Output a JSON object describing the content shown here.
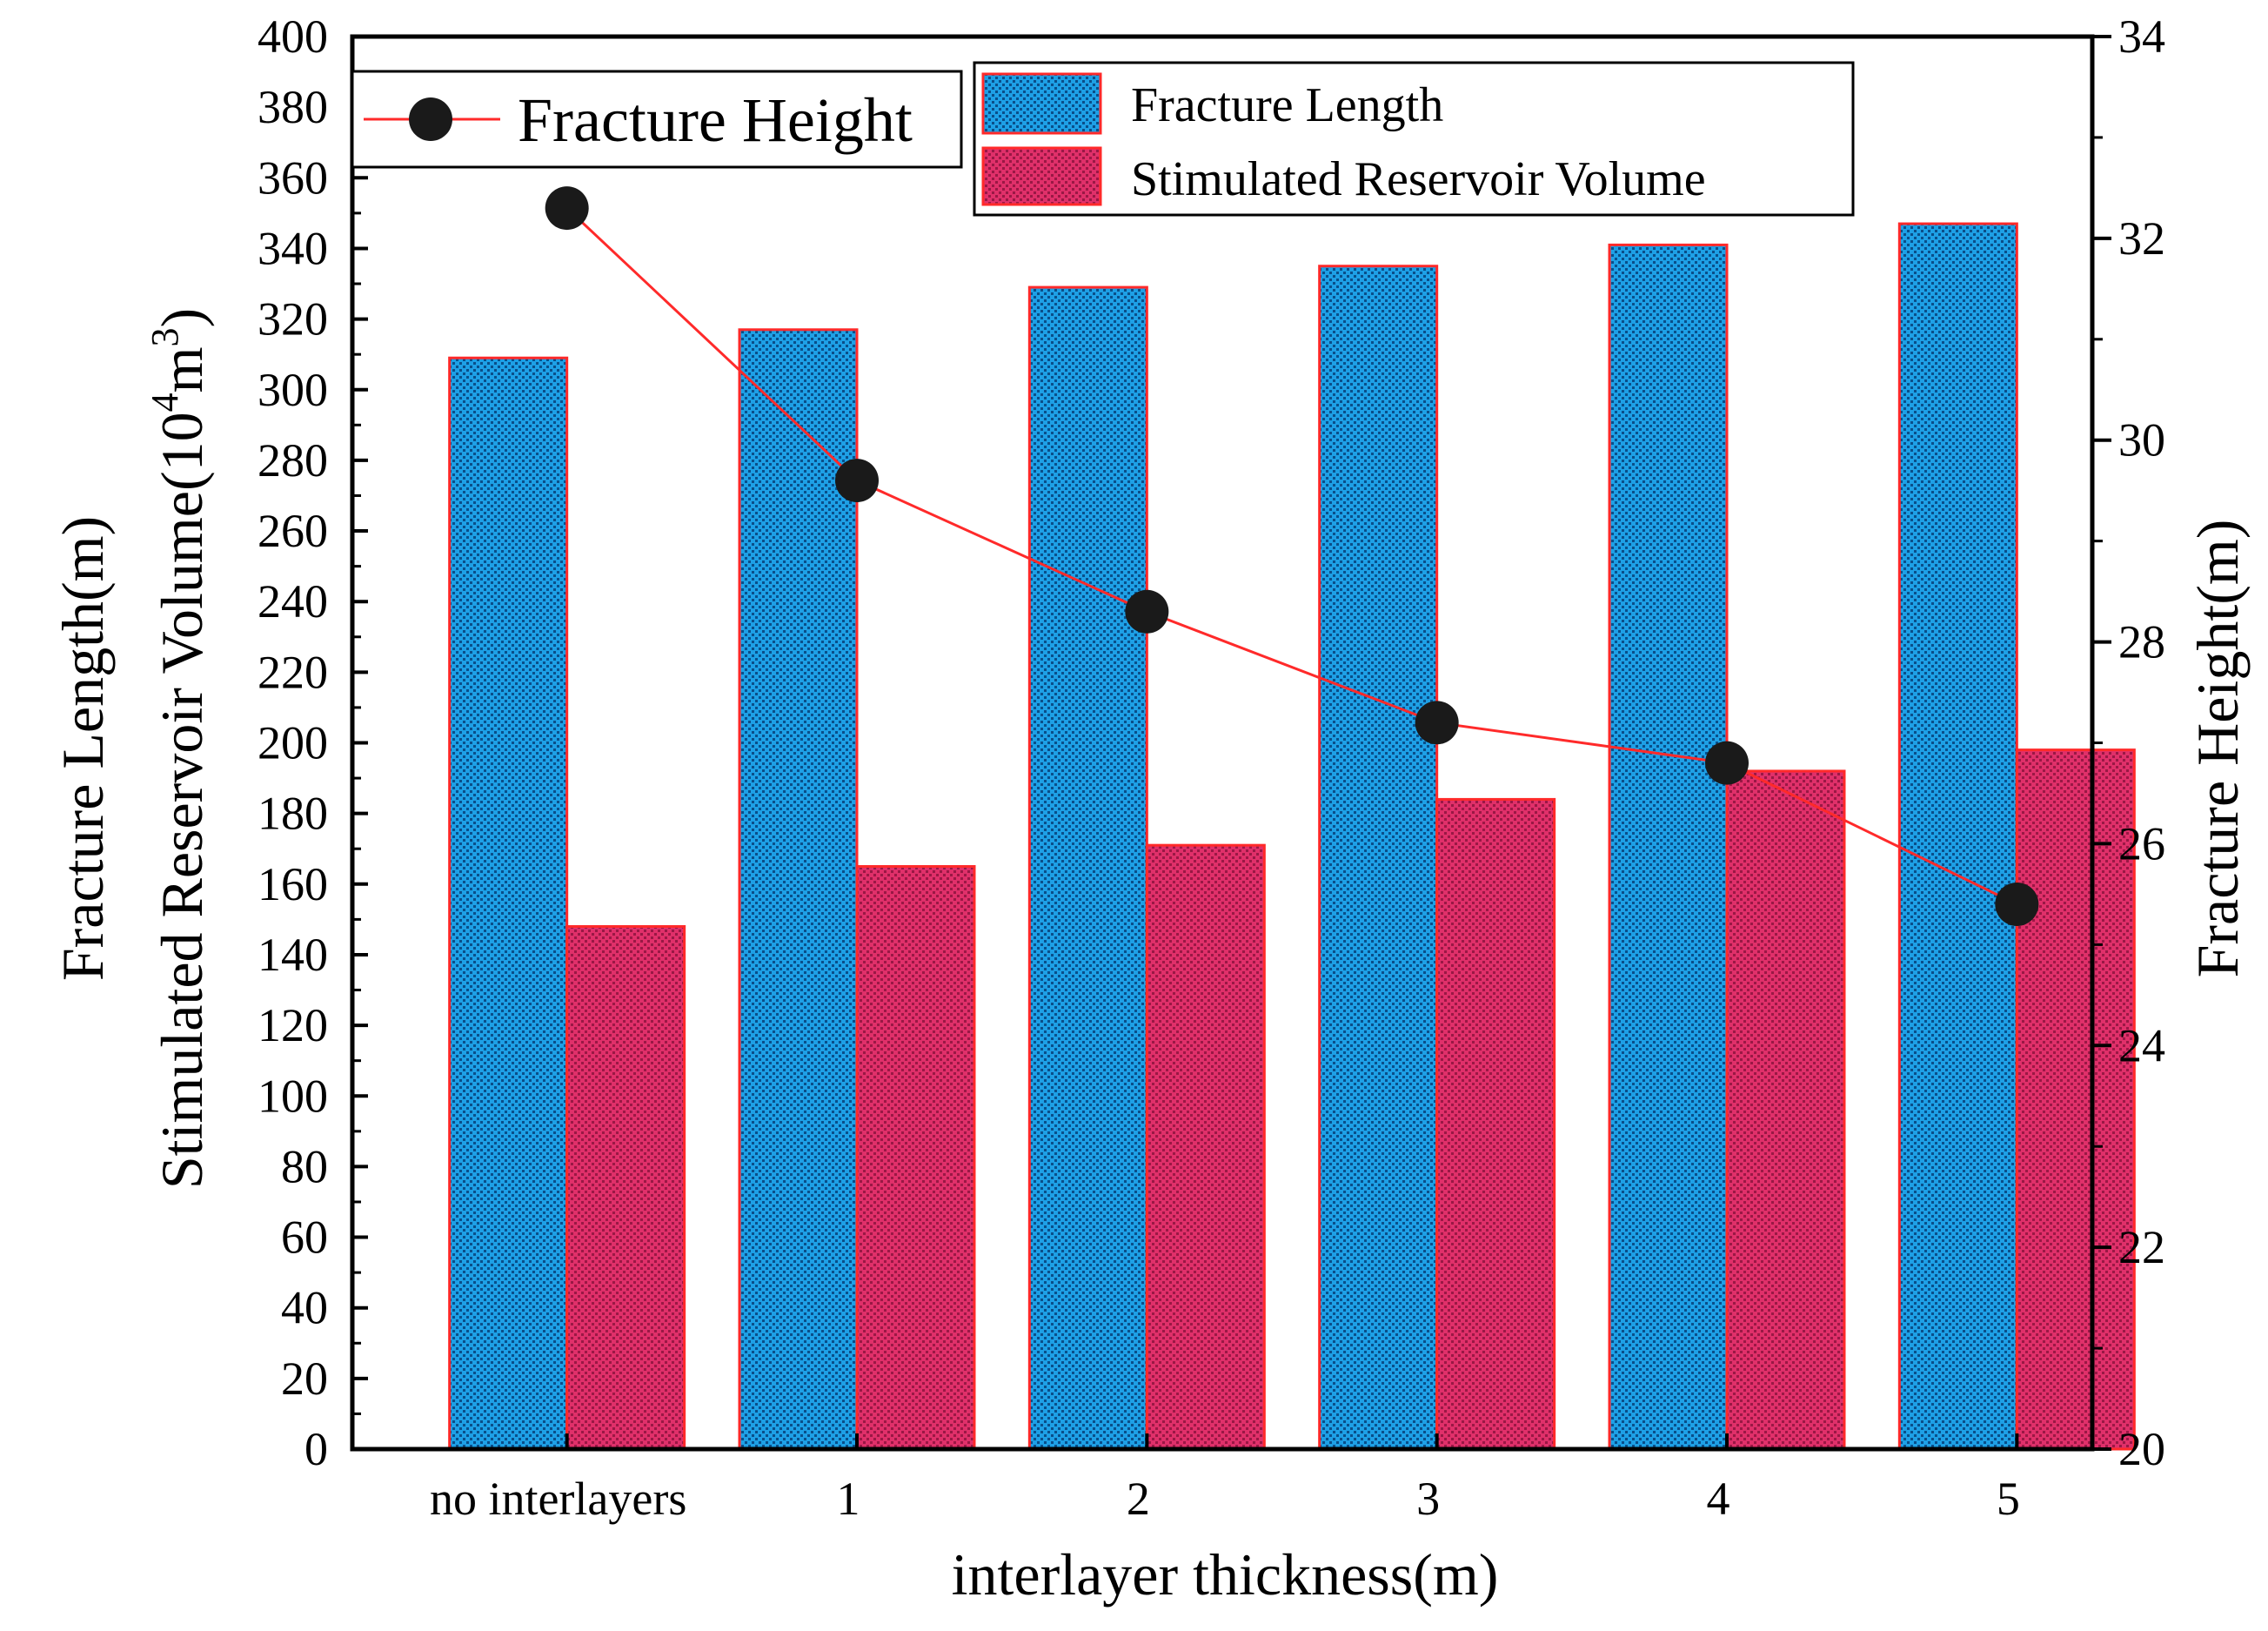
{
  "chart_data": {
    "type": "bar",
    "xlabel": "interlayer thickness(m)",
    "ylabel_left_line1": "Fracture Length(m)",
    "ylabel_left_line2_prefix": "Stimulated Reservoir Volume(10",
    "ylabel_left_line2_sup1": "4",
    "ylabel_left_line2_mid": "m",
    "ylabel_left_line2_sup2": "3",
    "ylabel_left_line2_suffix": ")",
    "ylabel_right": "Fracture Height(m)",
    "categories": [
      "no interlayers",
      "1",
      "2",
      "3",
      "4",
      "5"
    ],
    "ylim_left": [
      0,
      400
    ],
    "ylim_right": [
      20,
      34
    ],
    "yticks_left": [
      "0",
      "20",
      "40",
      "60",
      "80",
      "100",
      "120",
      "140",
      "160",
      "180",
      "200",
      "220",
      "240",
      "260",
      "280",
      "300",
      "320",
      "340",
      "360",
      "380",
      "400"
    ],
    "yticks_right": [
      "20",
      "22",
      "24",
      "26",
      "28",
      "30",
      "32",
      "34"
    ],
    "series": [
      {
        "name": "Fracture Length",
        "kind": "bar",
        "axis": "left",
        "color": "#1ea0e6",
        "values": [
          309,
          317,
          329,
          335,
          341,
          347
        ]
      },
      {
        "name": "Stimulated Reservoir Volume",
        "kind": "bar",
        "axis": "left",
        "color": "#d8265a",
        "values": [
          148,
          165,
          171,
          184,
          192,
          198
        ]
      },
      {
        "name": "Fracture Height",
        "kind": "line",
        "axis": "right",
        "color": "#ff2a2a",
        "marker_color": "#1a1a1a",
        "values": [
          32.3,
          29.6,
          28.3,
          27.2,
          26.8,
          25.4
        ]
      }
    ],
    "grid": false,
    "legend_placement": "top"
  }
}
